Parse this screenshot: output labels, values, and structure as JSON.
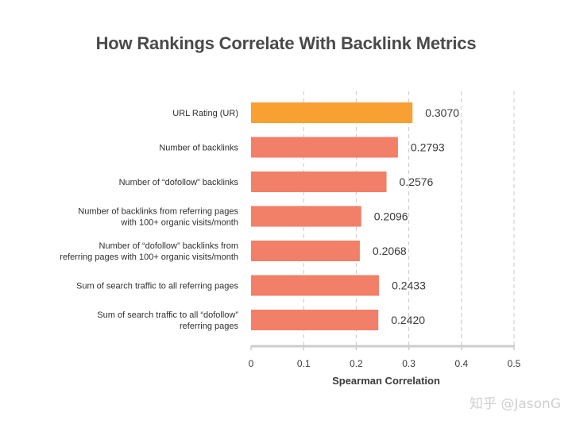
{
  "chart_data": {
    "type": "bar",
    "orientation": "horizontal",
    "title": "How Rankings Correlate With Backlink Metrics",
    "xlabel": "Spearman Correlation",
    "ylabel": "",
    "xlim": [
      0,
      0.5
    ],
    "xticks": [
      "0",
      "0.1",
      "0.2",
      "0.3",
      "0.4",
      "0.5"
    ],
    "grid": "vertical dashed",
    "categories": [
      [
        "URL Rating (UR)"
      ],
      [
        "Number of backlinks"
      ],
      [
        "Number of “dofollow” backlinks"
      ],
      [
        "Number of backlinks from referring pages",
        "with 100+ organic visits/month"
      ],
      [
        "Number of “dofollow” backlinks from",
        "referring pages with 100+ organic visits/month"
      ],
      [
        "Sum of search traffic to all referring pages"
      ],
      [
        "Sum of search traffic to all “dofollow”",
        "referring pages"
      ]
    ],
    "values": [
      0.307,
      0.2793,
      0.2576,
      0.2096,
      0.2068,
      0.2433,
      0.242
    ],
    "value_labels": [
      "0.3070",
      "0.2793",
      "0.2576",
      "0.2096",
      "0.2068",
      "0.2433",
      "0.2420"
    ],
    "colors": {
      "highlight": "#F9A033",
      "bar": "#F27F67",
      "grid": "#c8c8c8",
      "axis": "#cccccc",
      "text": "#3a3a3a"
    },
    "highlight_index": 0
  },
  "watermark": "知乎 @JasonG"
}
